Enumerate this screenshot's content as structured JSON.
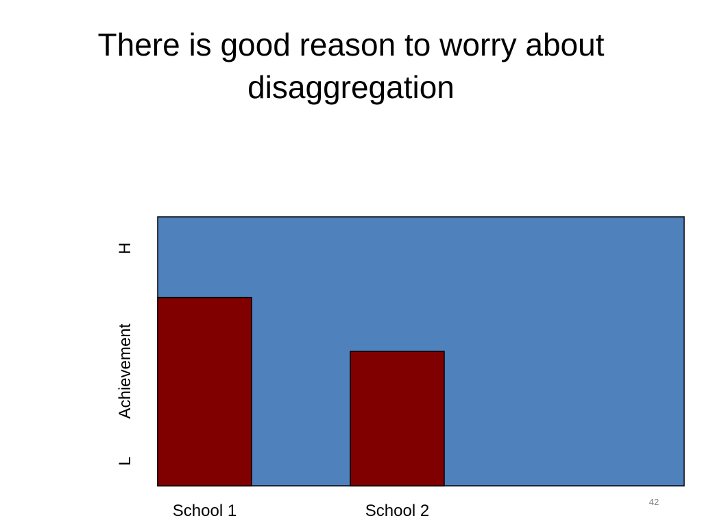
{
  "slide": {
    "title_line1": "There is good reason to worry about",
    "title_line2": "disaggregation",
    "page_number": "42"
  },
  "chart_data": {
    "type": "bar",
    "categories": [
      "School 1",
      "School 2"
    ],
    "values": [
      0.7,
      0.5
    ],
    "ylabel": "Achievement",
    "ytick_labels": {
      "low": "L",
      "high": "H"
    },
    "ylim": [
      0,
      1
    ],
    "grid": false,
    "legend": "none",
    "colors": {
      "plot_background": "#4F81BD",
      "bar_fill": "#800000",
      "outline": "#000000"
    }
  }
}
